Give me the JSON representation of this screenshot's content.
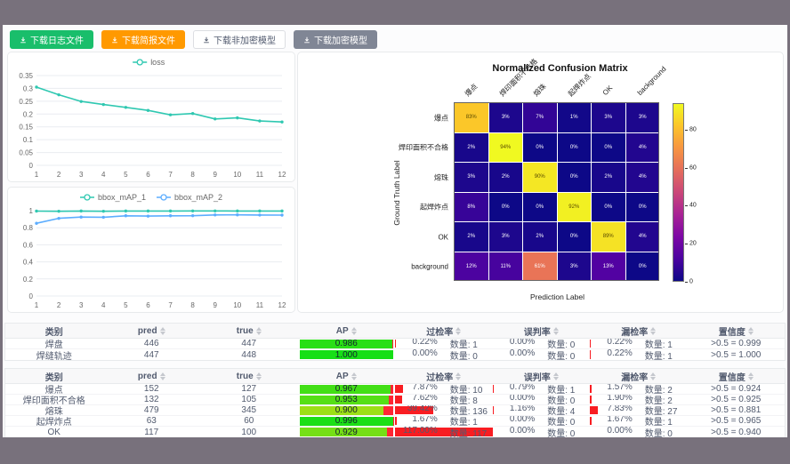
{
  "colors": {
    "frame": "#78717c",
    "teal": "#2fc8b1",
    "blue": "#5cadff",
    "red_bar": "#f81d22",
    "ap_remainder_red": "#ff2634",
    "button_green": "#19be6b",
    "button_orange": "#ff9900",
    "button_gray": "#808695"
  },
  "toolbar": {
    "buttons": [
      {
        "label": "下载日志文件",
        "variant": "green",
        "icon": "download-icon"
      },
      {
        "label": "下载简报文件",
        "variant": "orange",
        "icon": "download-icon"
      },
      {
        "label": "下载非加密模型",
        "variant": "plain",
        "icon": "download-icon"
      },
      {
        "label": "下载加密模型",
        "variant": "gray",
        "icon": "download-icon"
      }
    ]
  },
  "chart_data": [
    {
      "id": "loss",
      "type": "line",
      "title": "",
      "x": [
        1,
        2,
        3,
        4,
        5,
        6,
        7,
        8,
        9,
        10,
        11,
        12
      ],
      "series": [
        {
          "name": "loss",
          "color": "#2fc8b1",
          "values": [
            0.305,
            0.275,
            0.249,
            0.237,
            0.226,
            0.214,
            0.197,
            0.202,
            0.181,
            0.185,
            0.173,
            0.169
          ]
        }
      ],
      "ylim": [
        0,
        0.35
      ],
      "yticks": [
        0,
        0.05,
        0.1,
        0.15,
        0.2,
        0.25,
        0.3,
        0.35
      ],
      "grid": true,
      "legend_position": "top"
    },
    {
      "id": "bbox_map",
      "type": "line",
      "title": "",
      "x": [
        1,
        2,
        3,
        4,
        5,
        6,
        7,
        8,
        9,
        10,
        11,
        12
      ],
      "series": [
        {
          "name": "bbox_mAP_1",
          "color": "#2fc8b1",
          "values": [
            0.995,
            0.993,
            0.996,
            0.993,
            0.996,
            0.996,
            0.996,
            0.997,
            0.997,
            0.996,
            0.996,
            0.996
          ]
        },
        {
          "name": "bbox_mAP_2",
          "color": "#5cadff",
          "values": [
            0.852,
            0.91,
            0.925,
            0.923,
            0.94,
            0.936,
            0.94,
            0.941,
            0.95,
            0.951,
            0.949,
            0.948
          ]
        }
      ],
      "ylim": [
        0,
        1
      ],
      "yticks": [
        0,
        0.2,
        0.4,
        0.6,
        0.8,
        1
      ],
      "grid": true,
      "legend_position": "top"
    },
    {
      "id": "confusion_matrix",
      "type": "heatmap",
      "title": "Normalized Confusion Matrix",
      "xlabel": "Prediction Label",
      "ylabel": "Ground Truth Label",
      "labels": [
        "爆点",
        "焊印面积不合格",
        "熔珠",
        "起焊炸点",
        "OK",
        "background"
      ],
      "values": [
        [
          83,
          3,
          7,
          1,
          3,
          3
        ],
        [
          2,
          94,
          0,
          0,
          0,
          4
        ],
        [
          3,
          2,
          90,
          0,
          2,
          4
        ],
        [
          8,
          0,
          0,
          92,
          0,
          0
        ],
        [
          2,
          3,
          2,
          0,
          89,
          4
        ],
        [
          12,
          11,
          61,
          3,
          13,
          0
        ]
      ],
      "unit": "%",
      "vmin": 0,
      "vmax": 94,
      "colormap": "plasma",
      "colorbar_ticks": [
        0,
        20,
        40,
        60,
        80
      ]
    }
  ],
  "tables": [
    {
      "columns": [
        {
          "label": "类别",
          "sortable": false
        },
        {
          "label": "pred",
          "sortable": true
        },
        {
          "label": "true",
          "sortable": true
        },
        {
          "label": "AP",
          "sortable": true
        },
        {
          "label": "过检率",
          "sortable": true
        },
        {
          "label": "误判率",
          "sortable": true
        },
        {
          "label": "漏检率",
          "sortable": true
        },
        {
          "label": "置信度",
          "sortable": true
        }
      ],
      "rows": [
        {
          "label": "焊盘",
          "pred": "446",
          "true": "447",
          "ap_text": "0.986",
          "ap": 0.986,
          "over": {
            "pct": "0.22%",
            "qty": "数量: 1",
            "val": 0.22
          },
          "mis": {
            "pct": "0.00%",
            "qty": "数量: 0",
            "val": 0
          },
          "miss": {
            "pct": "0.22%",
            "qty": "数量: 1",
            "val": 0.22
          },
          "conf": ">0.5 = 0.999"
        },
        {
          "label": "焊缝轨迹",
          "pred": "447",
          "true": "448",
          "ap_text": "1.000",
          "ap": 1.0,
          "over": {
            "pct": "0.00%",
            "qty": "数量: 0",
            "val": 0
          },
          "mis": {
            "pct": "0.00%",
            "qty": "数量: 0",
            "val": 0
          },
          "miss": {
            "pct": "0.22%",
            "qty": "数量: 1",
            "val": 0.22
          },
          "conf": ">0.5 = 1.000"
        }
      ]
    },
    {
      "columns": [
        {
          "label": "类别",
          "sortable": false
        },
        {
          "label": "pred",
          "sortable": true
        },
        {
          "label": "true",
          "sortable": true
        },
        {
          "label": "AP",
          "sortable": true
        },
        {
          "label": "过检率",
          "sortable": true
        },
        {
          "label": "误判率",
          "sortable": true
        },
        {
          "label": "漏检率",
          "sortable": true
        },
        {
          "label": "置信度",
          "sortable": true
        }
      ],
      "rows": [
        {
          "label": "爆点",
          "pred": "152",
          "true": "127",
          "ap_text": "0.967",
          "ap": 0.967,
          "over": {
            "pct": "7.87%",
            "qty": "数量: 10",
            "val": 7.87
          },
          "mis": {
            "pct": "0.79%",
            "qty": "数量: 1",
            "val": 0.79
          },
          "miss": {
            "pct": "1.57%",
            "qty": "数量: 2",
            "val": 1.57
          },
          "conf": ">0.5 = 0.924"
        },
        {
          "label": "焊印面积不合格",
          "pred": "132",
          "true": "105",
          "ap_text": "0.953",
          "ap": 0.953,
          "over": {
            "pct": "7.62%",
            "qty": "数量: 8",
            "val": 7.62
          },
          "mis": {
            "pct": "0.00%",
            "qty": "数量: 0",
            "val": 0
          },
          "miss": {
            "pct": "1.90%",
            "qty": "数量: 2",
            "val": 1.9
          },
          "conf": ">0.5 = 0.925"
        },
        {
          "label": "熔珠",
          "pred": "479",
          "true": "345",
          "ap_text": "0.900",
          "ap": 0.9,
          "over": {
            "pct": "39.42%",
            "qty": "数量: 136",
            "val": 39.42
          },
          "mis": {
            "pct": "1.16%",
            "qty": "数量: 4",
            "val": 1.16
          },
          "miss": {
            "pct": "7.83%",
            "qty": "数量: 27",
            "val": 7.83
          },
          "conf": ">0.5 = 0.881"
        },
        {
          "label": "起焊炸点",
          "pred": "63",
          "true": "60",
          "ap_text": "0.996",
          "ap": 0.996,
          "over": {
            "pct": "1.67%",
            "qty": "数量: 1",
            "val": 1.67
          },
          "mis": {
            "pct": "0.00%",
            "qty": "数量: 0",
            "val": 0
          },
          "miss": {
            "pct": "1.67%",
            "qty": "数量: 1",
            "val": 1.67
          },
          "conf": ">0.5 = 0.965"
        },
        {
          "label": "OK",
          "pred": "117",
          "true": "100",
          "ap_text": "0.929",
          "ap": 0.929,
          "over": {
            "pct": "117.00%",
            "qty": "数量: 117",
            "val": 117
          },
          "mis": {
            "pct": "0.00%",
            "qty": "数量: 0",
            "val": 0
          },
          "miss": {
            "pct": "0.00%",
            "qty": "数量: 0",
            "val": 0
          },
          "conf": ">0.5 = 0.940"
        }
      ]
    }
  ]
}
